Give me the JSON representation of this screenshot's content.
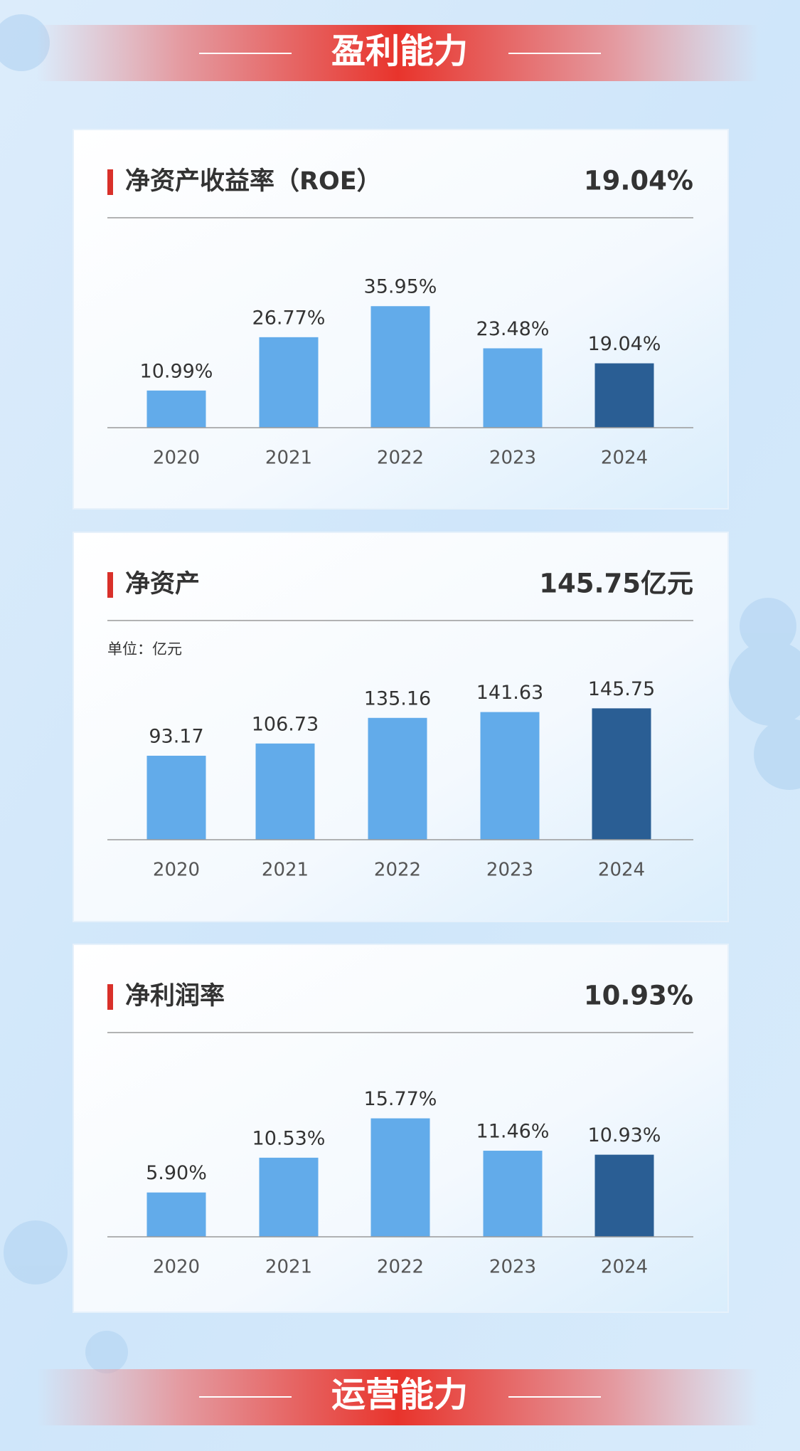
{
  "banners": [
    "盈利能力",
    "运营能力"
  ],
  "chart_data": [
    {
      "type": "bar",
      "title": "净资产收益率（ROE）",
      "highlight": "19.04%",
      "categories": [
        "2020",
        "2021",
        "2022",
        "2023",
        "2024"
      ],
      "values": [
        10.99,
        26.77,
        35.95,
        23.48,
        19.04
      ],
      "value_labels": [
        "10.99%",
        "26.77%",
        "35.95%",
        "23.48%",
        "19.04%"
      ],
      "colors": [
        "#62abea",
        "#62abea",
        "#62abea",
        "#62abea",
        "#2a5e94"
      ],
      "ylim": [
        0,
        40
      ]
    },
    {
      "type": "bar",
      "title": "净资产",
      "highlight": "145.75亿元",
      "subtitle": "单位：亿元",
      "categories": [
        "2020",
        "2021",
        "2022",
        "2023",
        "2024"
      ],
      "values": [
        93.17,
        106.73,
        135.16,
        141.63,
        145.75
      ],
      "colors": [
        "#62abea",
        "#62abea",
        "#62abea",
        "#62abea",
        "#2a5e94"
      ],
      "ylim": [
        0,
        150
      ]
    },
    {
      "type": "bar",
      "title": "净利润率",
      "highlight": "10.93%",
      "categories": [
        "2020",
        "2021",
        "2022",
        "2023",
        "2024"
      ],
      "values": [
        5.9,
        10.53,
        15.77,
        11.46,
        10.93
      ],
      "value_labels": [
        "5.90%",
        "10.53%",
        "15.77%",
        "11.46%",
        "10.93%"
      ],
      "colors": [
        "#62abea",
        "#62abea",
        "#62abea",
        "#62abea",
        "#2a5e94"
      ],
      "ylim": [
        0,
        18
      ]
    }
  ]
}
